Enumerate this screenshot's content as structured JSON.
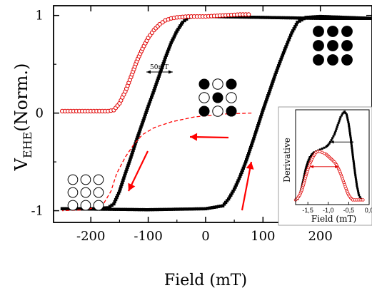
{
  "chart_data": {
    "type": "scatter",
    "xlabel": "Field (mT)",
    "ylabel_main": "V",
    "ylabel_sub": "EHE",
    "ylabel_tail": "(Norm.)",
    "xlim": [
      -265,
      290
    ],
    "ylim": [
      -1.12,
      1.1
    ],
    "x_ticks": [
      -200,
      -100,
      0,
      100,
      200
    ],
    "x_tick_labels": [
      "-200",
      "-100",
      "0",
      "100",
      "200"
    ],
    "y_ticks": [
      -1,
      0,
      1
    ],
    "y_tick_labels": [
      "-1",
      "0",
      "1"
    ],
    "annotation": "50mT",
    "series": [
      {
        "marker": "filled-square",
        "color": "#000000",
        "x": [
          -250,
          -200,
          -170,
          -160,
          -150,
          -140,
          -130,
          -120,
          -110,
          -100,
          -90,
          -80,
          -70,
          -60,
          -50,
          -40,
          -30,
          -20,
          0,
          100,
          200,
          290
        ],
        "y": [
          -0.98,
          -0.98,
          -0.97,
          -0.93,
          -0.8,
          -0.62,
          -0.45,
          -0.27,
          -0.1,
          0.07,
          0.23,
          0.4,
          0.57,
          0.72,
          0.84,
          0.93,
          0.98,
          0.99,
          0.99,
          0.98,
          0.97,
          0.97
        ]
      },
      {
        "marker": "filled-square",
        "color": "#000000",
        "x": [
          -250,
          -100,
          0,
          30,
          40,
          50,
          60,
          70,
          80,
          90,
          100,
          110,
          120,
          130,
          140,
          150,
          160,
          175,
          200,
          290
        ],
        "y": [
          -0.98,
          -0.99,
          -0.98,
          -0.95,
          -0.88,
          -0.78,
          -0.65,
          -0.5,
          -0.33,
          -0.15,
          0.03,
          0.2,
          0.37,
          0.53,
          0.68,
          0.82,
          0.93,
          0.98,
          0.99,
          0.97
        ]
      },
      {
        "marker": "open-circle",
        "color": "#e00000",
        "x": [
          -250,
          -220,
          -190,
          -170,
          -160,
          -150,
          -140,
          -130,
          -120,
          -110,
          -100,
          -90,
          -80,
          -70,
          -60,
          -50,
          -30,
          0,
          30,
          60,
          80
        ],
        "y": [
          0.02,
          0.02,
          0.02,
          0.02,
          0.03,
          0.1,
          0.22,
          0.37,
          0.53,
          0.66,
          0.77,
          0.85,
          0.91,
          0.95,
          0.97,
          0.98,
          0.99,
          0.99,
          1.0,
          1.01,
          1.01
        ]
      },
      {
        "marker": "dashed-line",
        "color": "#ff0000",
        "x": [
          80,
          30,
          -20,
          -60,
          -90,
          -110,
          -125,
          -140,
          -155,
          -165,
          -180,
          -210,
          -250
        ],
        "y": [
          0.0,
          -0.01,
          -0.04,
          -0.09,
          -0.15,
          -0.22,
          -0.32,
          -0.45,
          -0.62,
          -0.8,
          -0.95,
          -0.99,
          -1.0
        ]
      }
    ],
    "domain_diagrams": [
      {
        "name": "all-up",
        "cells": [
          1,
          1,
          1,
          1,
          1,
          1,
          1,
          1,
          1
        ]
      },
      {
        "name": "mixed",
        "cells": [
          1,
          0,
          1,
          0,
          1,
          0,
          1,
          0,
          1
        ]
      },
      {
        "name": "all-down",
        "cells": [
          0,
          0,
          0,
          0,
          0,
          0,
          0,
          0,
          0
        ]
      }
    ],
    "inset": {
      "xlabel": "Field (mT)",
      "ylabel": "Derivative",
      "xlim": [
        -1.8,
        0.0
      ],
      "ylim": [
        0,
        1.0
      ],
      "x_ticks": [
        -1.5,
        -1.0,
        -0.5,
        0.0
      ],
      "x_tick_labels": [
        "-1,5",
        "-1,0",
        "-0,5",
        "0,0"
      ],
      "series": [
        {
          "marker": "filled-square",
          "color": "#000000",
          "x": [
            -1.8,
            -1.75,
            -1.7,
            -1.65,
            -1.6,
            -1.55,
            -1.5,
            -1.45,
            -1.4,
            -1.35,
            -1.3,
            -1.25,
            -1.2,
            -1.15,
            -1.1,
            -1.05,
            -1.0,
            -0.95,
            -0.9,
            -0.85,
            -0.8,
            -0.75,
            -0.7,
            -0.65,
            -0.6,
            -0.55,
            -0.5,
            -0.45,
            -0.4,
            -0.35,
            -0.3,
            -0.25,
            -0.2,
            -0.15,
            -0.1
          ],
          "y": [
            0.05,
            0.06,
            0.1,
            0.18,
            0.28,
            0.38,
            0.45,
            0.5,
            0.53,
            0.55,
            0.56,
            0.57,
            0.58,
            0.59,
            0.6,
            0.61,
            0.63,
            0.66,
            0.7,
            0.74,
            0.8,
            0.86,
            0.92,
            0.96,
            0.98,
            0.95,
            0.85,
            0.7,
            0.52,
            0.35,
            0.2,
            0.1,
            0.06,
            0.05,
            0.05
          ]
        },
        {
          "marker": "open-circle",
          "color": "#e00000",
          "x": [
            -1.8,
            -1.75,
            -1.7,
            -1.65,
            -1.6,
            -1.55,
            -1.5,
            -1.45,
            -1.4,
            -1.35,
            -1.3,
            -1.25,
            -1.2,
            -1.15,
            -1.1,
            -1.05,
            -1.0,
            -0.95,
            -0.9,
            -0.85,
            -0.8,
            -0.75,
            -0.7,
            -0.65,
            -0.6,
            -0.55,
            -0.5,
            -0.45,
            -0.4,
            -0.35,
            -0.3,
            -0.25,
            -0.2,
            -0.15,
            -0.1
          ],
          "y": [
            0.05,
            0.07,
            0.1,
            0.15,
            0.22,
            0.3,
            0.37,
            0.43,
            0.48,
            0.52,
            0.55,
            0.56,
            0.56,
            0.55,
            0.54,
            0.53,
            0.51,
            0.49,
            0.47,
            0.45,
            0.42,
            0.38,
            0.33,
            0.27,
            0.21,
            0.15,
            0.1,
            0.07,
            0.05,
            0.05,
            0.05,
            0.05,
            0.05,
            0.05,
            0.05
          ]
        }
      ]
    }
  }
}
